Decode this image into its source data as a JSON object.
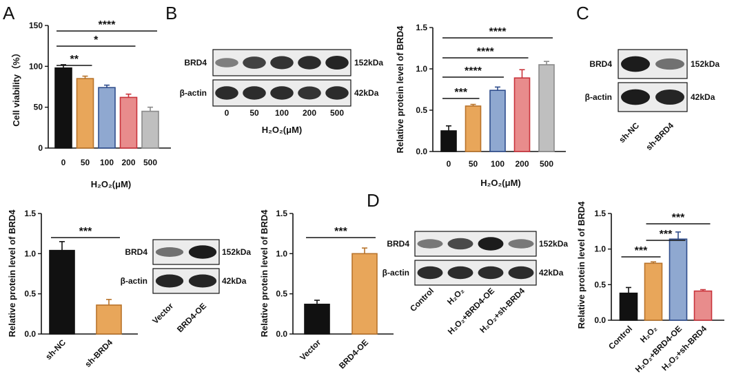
{
  "colors": {
    "black": "#111111",
    "orange": "#E8A65A",
    "blue": "#8FA8D0",
    "blue_edge": "#2F4D8C",
    "red": "#E88C8C",
    "red_edge": "#C9333B",
    "gray": "#BFBFBF",
    "gray_edge": "#8A8A8A"
  },
  "panel_labels": {
    "a": "A",
    "b": "B",
    "c": "C",
    "d": "D"
  },
  "blots": {
    "b": {
      "rows": [
        "BRD4",
        "β-actin"
      ],
      "sizes": [
        "152kDa",
        "42kDa"
      ],
      "lanes": [
        "0",
        "50",
        "100",
        "200",
        "500"
      ],
      "xlabel": "H₂O₂(μM)"
    },
    "c": {
      "rows": [
        "BRD4",
        "β-actin"
      ],
      "sizes": [
        "152kDa",
        "42kDa"
      ],
      "lanes": [
        "sh-NC",
        "sh-BRD4"
      ]
    },
    "oe": {
      "rows": [
        "BRD4",
        "β-actin"
      ],
      "sizes": [
        "152kDa",
        "42kDa"
      ],
      "lanes": [
        "Vector",
        "BRD4-OE"
      ]
    },
    "d": {
      "rows": [
        "BRD4",
        "β-actin"
      ],
      "sizes": [
        "152kDa",
        "42kDa"
      ],
      "lanes": [
        "Control",
        "H₂O₂",
        "H₂O₂+BRD4-OE",
        "H₂O₂+sh-BRD4"
      ]
    }
  },
  "chart_data": [
    {
      "id": "a",
      "type": "bar",
      "categories": [
        "0",
        "50",
        "100",
        "200",
        "500"
      ],
      "values": [
        98,
        85,
        74,
        62,
        45
      ],
      "errors": [
        4,
        3,
        3,
        4,
        5
      ],
      "ylabel": "Cell viability（%）",
      "xlabel": "H₂O₂(μM)",
      "ylim": [
        0,
        150
      ],
      "yticks": [
        "0",
        "50",
        "100",
        "150"
      ],
      "colors": [
        "black",
        "orange",
        "blue",
        "red",
        "gray"
      ],
      "sig": [
        {
          "from": 0,
          "to": 1,
          "label": "**"
        },
        {
          "from": 0,
          "to": 3,
          "label": "*"
        },
        {
          "from": 0,
          "to": 4,
          "label": "****"
        }
      ]
    },
    {
      "id": "b",
      "type": "bar",
      "categories": [
        "0",
        "50",
        "100",
        "200",
        "500"
      ],
      "values": [
        0.25,
        0.55,
        0.74,
        0.89,
        1.05
      ],
      "errors": [
        0.06,
        0.02,
        0.04,
        0.1,
        0.04
      ],
      "ylabel": "Relative protein level of BRD4",
      "xlabel": "H₂O₂(μM)",
      "ylim": [
        0,
        1.5
      ],
      "yticks": [
        "0.0",
        "0.5",
        "1.0",
        "1.5"
      ],
      "colors": [
        "black",
        "orange",
        "blue",
        "red",
        "gray"
      ],
      "sig": [
        {
          "from": 0,
          "to": 1,
          "label": "***"
        },
        {
          "from": 0,
          "to": 2,
          "label": "****"
        },
        {
          "from": 0,
          "to": 3,
          "label": "****"
        },
        {
          "from": 0,
          "to": 4,
          "label": "****"
        }
      ]
    },
    {
      "id": "e",
      "type": "bar",
      "categories": [
        "sh-NC",
        "sh-BRD4"
      ],
      "values": [
        1.04,
        0.36
      ],
      "errors": [
        0.11,
        0.07
      ],
      "ylabel": "Relative protein level of BRD4",
      "xlabel": "",
      "ylim": [
        0,
        1.5
      ],
      "yticks": [
        "0.0",
        "0.5",
        "1.0",
        "1.5"
      ],
      "colors": [
        "black",
        "orange"
      ],
      "sig": [
        {
          "from": 0,
          "to": 1,
          "label": "***"
        }
      ]
    },
    {
      "id": "f",
      "type": "bar",
      "categories": [
        "Vector",
        "BRD4-OE"
      ],
      "values": [
        0.37,
        1.0
      ],
      "errors": [
        0.05,
        0.07
      ],
      "ylabel": "Relative protein level of BRD4",
      "xlabel": "",
      "ylim": [
        0,
        1.5
      ],
      "yticks": [
        "0.0",
        "0.5",
        "1.0",
        "1.5"
      ],
      "colors": [
        "black",
        "orange"
      ],
      "sig": [
        {
          "from": 0,
          "to": 1,
          "label": "***"
        }
      ]
    },
    {
      "id": "g",
      "type": "bar",
      "categories": [
        "Control",
        "H₂O₂",
        "H₂O₂+BRD4-OE",
        "H₂O₂+sh-BRD4"
      ],
      "values": [
        0.38,
        0.8,
        1.14,
        0.41
      ],
      "errors": [
        0.08,
        0.02,
        0.1,
        0.02
      ],
      "ylabel": "Relative protein level of BRD4",
      "xlabel": "",
      "ylim": [
        0,
        1.5
      ],
      "yticks": [
        "0.0",
        "0.5",
        "1.0",
        "1.5"
      ],
      "colors": [
        "black",
        "orange",
        "blue",
        "red"
      ],
      "sig": [
        {
          "from": 0,
          "to": 1,
          "label": "***"
        },
        {
          "from": 1,
          "to": 2,
          "label": "***"
        },
        {
          "from": 1,
          "to": 3,
          "label": "***"
        }
      ]
    }
  ]
}
